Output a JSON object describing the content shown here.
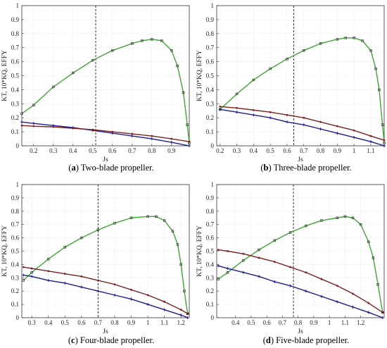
{
  "colors": {
    "effy": "#3fa535",
    "kt": "#1c1c8c",
    "kq": "#7a2222",
    "marker": "#222222",
    "grid": "#e2e2e2",
    "vline": "#333333"
  },
  "chart_data": [
    {
      "type": "line",
      "caption_letter": "a",
      "caption_text": "Two-blade propeller.",
      "xlabel": "Js",
      "ylabel": "KT, 10*KQ, EFFY",
      "xlim": [
        0.14,
        0.99
      ],
      "ylim": [
        0,
        1
      ],
      "xticks": [
        "0.2",
        "0.3",
        "0.4",
        "0.5",
        "0.6",
        "0.7",
        "0.8",
        "0.9"
      ],
      "yticks": [
        "0",
        "0.1",
        "0.2",
        "0.3",
        "0.4",
        "0.5",
        "0.6",
        "0.7",
        "0.8",
        "0.9",
        "1"
      ],
      "vline_x": 0.515,
      "grid": true,
      "series": [
        {
          "key": "effy",
          "x": [
            0.14,
            0.2,
            0.3,
            0.4,
            0.5,
            0.6,
            0.7,
            0.75,
            0.8,
            0.85,
            0.9,
            0.93,
            0.96,
            0.98,
            0.99
          ],
          "y": [
            0.23,
            0.29,
            0.42,
            0.52,
            0.61,
            0.68,
            0.73,
            0.75,
            0.76,
            0.75,
            0.68,
            0.57,
            0.38,
            0.15,
            0.02
          ]
        },
        {
          "key": "kt",
          "x": [
            0.14,
            0.2,
            0.3,
            0.4,
            0.5,
            0.6,
            0.7,
            0.8,
            0.9,
            0.99
          ],
          "y": [
            0.17,
            0.16,
            0.145,
            0.13,
            0.11,
            0.09,
            0.07,
            0.05,
            0.025,
            0.0
          ]
        },
        {
          "key": "kq",
          "x": [
            0.14,
            0.2,
            0.3,
            0.4,
            0.5,
            0.6,
            0.7,
            0.8,
            0.9,
            0.99
          ],
          "y": [
            0.145,
            0.14,
            0.135,
            0.125,
            0.115,
            0.1,
            0.085,
            0.07,
            0.05,
            0.03
          ]
        }
      ]
    },
    {
      "type": "line",
      "caption_letter": "b",
      "caption_text": "Three-blade propeller.",
      "xlabel": "Js",
      "ylabel": "KT, 10*KQ, EFFY",
      "xlim": [
        0.18,
        1.18
      ],
      "ylim": [
        0,
        1
      ],
      "xticks": [
        "0.2",
        "0.3",
        "0.4",
        "0.5",
        "0.6",
        "0.7",
        "0.8",
        "0.9",
        "1",
        "1.1"
      ],
      "yticks": [
        "0",
        "0.1",
        "0.2",
        "0.3",
        "0.4",
        "0.5",
        "0.6",
        "0.7",
        "0.8",
        "0.9",
        "1"
      ],
      "vline_x": 0.64,
      "grid": true,
      "series": [
        {
          "key": "effy",
          "x": [
            0.2,
            0.3,
            0.4,
            0.5,
            0.6,
            0.7,
            0.8,
            0.9,
            0.95,
            1.0,
            1.05,
            1.1,
            1.13,
            1.15,
            1.17,
            1.18
          ],
          "y": [
            0.26,
            0.37,
            0.47,
            0.55,
            0.62,
            0.68,
            0.73,
            0.76,
            0.77,
            0.77,
            0.75,
            0.68,
            0.55,
            0.4,
            0.15,
            0.02
          ]
        },
        {
          "key": "kt",
          "x": [
            0.2,
            0.3,
            0.4,
            0.5,
            0.6,
            0.7,
            0.8,
            0.9,
            1.0,
            1.1,
            1.18
          ],
          "y": [
            0.26,
            0.24,
            0.22,
            0.2,
            0.17,
            0.15,
            0.12,
            0.09,
            0.06,
            0.03,
            0.0
          ]
        },
        {
          "key": "kq",
          "x": [
            0.2,
            0.3,
            0.4,
            0.5,
            0.6,
            0.7,
            0.8,
            0.9,
            1.0,
            1.1,
            1.18
          ],
          "y": [
            0.28,
            0.27,
            0.255,
            0.24,
            0.22,
            0.2,
            0.17,
            0.14,
            0.11,
            0.07,
            0.04
          ]
        }
      ]
    },
    {
      "type": "line",
      "caption_letter": "c",
      "caption_text": "Four-blade propeller.",
      "xlabel": "Js",
      "ylabel": "KT, 10*KQ, EFFY",
      "xlim": [
        0.24,
        1.25
      ],
      "ylim": [
        0,
        1
      ],
      "xticks": [
        "0.3",
        "0.4",
        "0.5",
        "0.6",
        "0.7",
        "0.8",
        "0.9",
        "1",
        "1.1",
        "1.2"
      ],
      "yticks": [
        "0",
        "0.1",
        "0.2",
        "0.3",
        "0.4",
        "0.5",
        "0.6",
        "0.7",
        "0.8",
        "0.9",
        "1"
      ],
      "vline_x": 0.7,
      "grid": true,
      "series": [
        {
          "key": "effy",
          "x": [
            0.25,
            0.3,
            0.4,
            0.5,
            0.6,
            0.7,
            0.8,
            0.9,
            1.0,
            1.05,
            1.1,
            1.15,
            1.18,
            1.2,
            1.22,
            1.24
          ],
          "y": [
            0.28,
            0.34,
            0.44,
            0.53,
            0.6,
            0.66,
            0.71,
            0.75,
            0.76,
            0.76,
            0.73,
            0.65,
            0.55,
            0.4,
            0.2,
            0.03
          ]
        },
        {
          "key": "kt",
          "x": [
            0.25,
            0.3,
            0.4,
            0.5,
            0.6,
            0.7,
            0.8,
            0.9,
            1.0,
            1.1,
            1.2,
            1.24
          ],
          "y": [
            0.32,
            0.31,
            0.28,
            0.26,
            0.23,
            0.2,
            0.17,
            0.14,
            0.1,
            0.06,
            0.02,
            0.0
          ]
        },
        {
          "key": "kq",
          "x": [
            0.25,
            0.3,
            0.4,
            0.5,
            0.6,
            0.7,
            0.8,
            0.9,
            1.0,
            1.1,
            1.2,
            1.24
          ],
          "y": [
            0.38,
            0.37,
            0.35,
            0.33,
            0.31,
            0.28,
            0.25,
            0.21,
            0.17,
            0.12,
            0.06,
            0.03
          ]
        }
      ]
    },
    {
      "type": "line",
      "caption_letter": "d",
      "caption_text": "Five-blade propeller.",
      "xlabel": "Js",
      "ylabel": "KT, 10*KQ, EFFY",
      "xlim": [
        0.28,
        1.35
      ],
      "ylim": [
        0,
        1
      ],
      "xticks": [
        "0.4",
        "0.5",
        "0.6",
        "0.7",
        "0.8",
        "0.9",
        "1",
        "1.1",
        "1.2"
      ],
      "yticks": [
        "0",
        "0.1",
        "0.2",
        "0.3",
        "0.4",
        "0.5",
        "0.6",
        "0.7",
        "0.8",
        "0.9",
        "1"
      ],
      "vline_x": 0.77,
      "grid": true,
      "series": [
        {
          "key": "effy",
          "x": [
            0.29,
            0.35,
            0.45,
            0.55,
            0.65,
            0.75,
            0.85,
            0.95,
            1.05,
            1.1,
            1.15,
            1.2,
            1.25,
            1.28,
            1.31,
            1.34
          ],
          "y": [
            0.29,
            0.34,
            0.43,
            0.51,
            0.58,
            0.64,
            0.69,
            0.73,
            0.75,
            0.76,
            0.75,
            0.7,
            0.57,
            0.45,
            0.25,
            0.04
          ]
        },
        {
          "key": "kt",
          "x": [
            0.29,
            0.35,
            0.45,
            0.55,
            0.65,
            0.75,
            0.85,
            0.95,
            1.05,
            1.15,
            1.25,
            1.34
          ],
          "y": [
            0.39,
            0.37,
            0.34,
            0.31,
            0.27,
            0.24,
            0.2,
            0.16,
            0.12,
            0.08,
            0.04,
            0.0
          ]
        },
        {
          "key": "kq",
          "x": [
            0.29,
            0.35,
            0.45,
            0.55,
            0.65,
            0.75,
            0.85,
            0.95,
            1.05,
            1.15,
            1.25,
            1.34
          ],
          "y": [
            0.51,
            0.5,
            0.48,
            0.45,
            0.42,
            0.38,
            0.34,
            0.29,
            0.24,
            0.18,
            0.11,
            0.04
          ]
        }
      ]
    }
  ]
}
